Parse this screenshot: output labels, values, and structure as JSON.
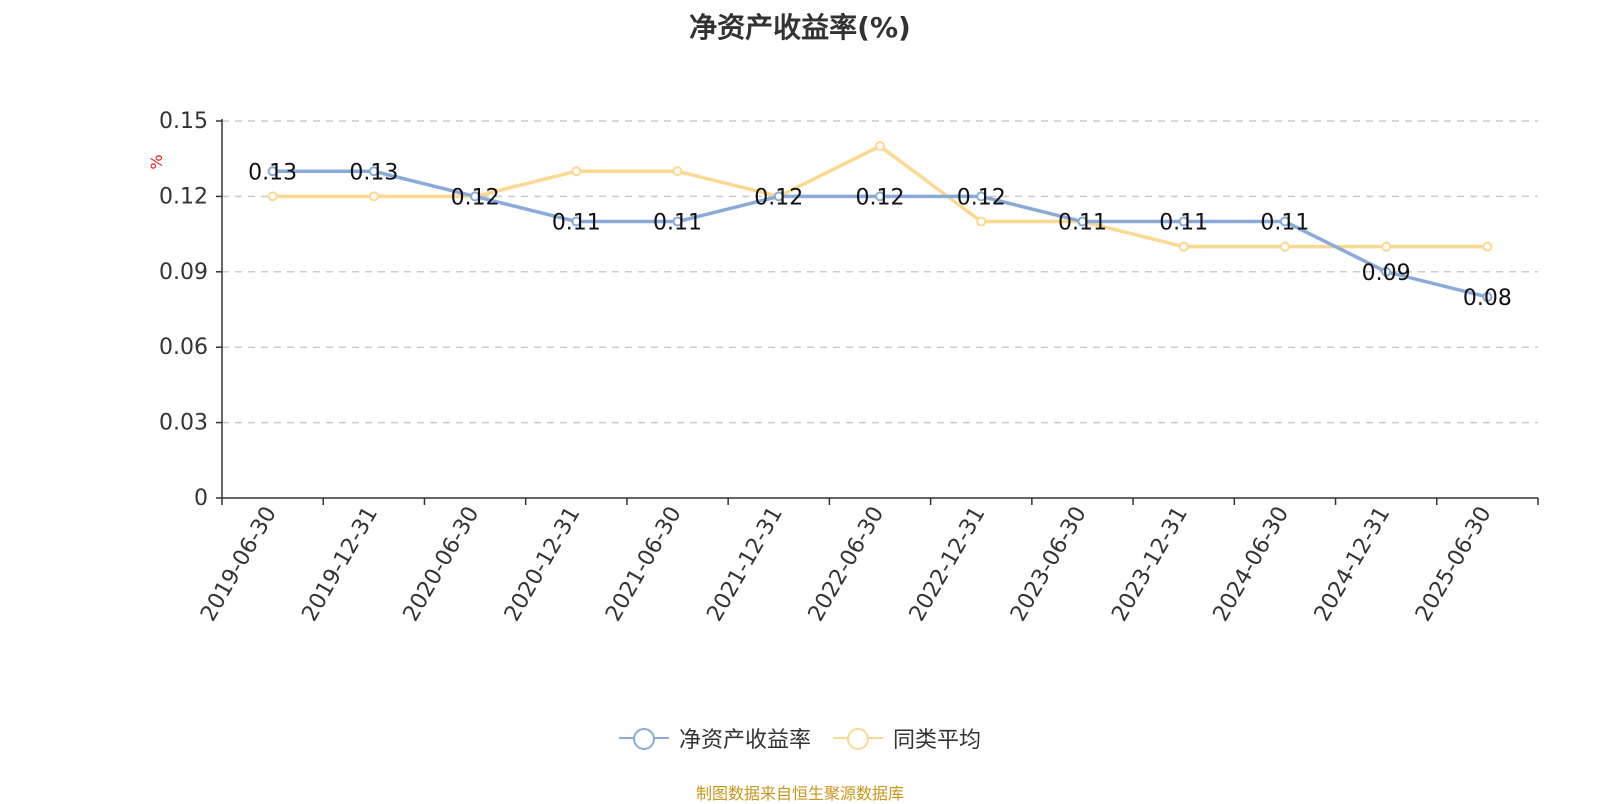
{
  "chart_data": {
    "type": "line",
    "title": "净资产收益率(%)",
    "ylabel": "%",
    "xlabel": "",
    "categories": [
      "2019-06-30",
      "2019-12-31",
      "2020-06-30",
      "2020-12-31",
      "2021-06-30",
      "2021-12-31",
      "2022-06-30",
      "2022-12-31",
      "2023-06-30",
      "2023-12-31",
      "2024-06-30",
      "2024-12-31",
      "2025-06-30"
    ],
    "ylim": [
      0,
      0.15
    ],
    "yticks": [
      "0",
      "0.03",
      "0.06",
      "0.09",
      "0.12",
      "0.15"
    ],
    "grid": true,
    "legend_position": "bottom-center",
    "series": [
      {
        "name": "净资产收益率",
        "color": "#8aaad8",
        "values": [
          0.13,
          0.13,
          0.12,
          0.11,
          0.11,
          0.12,
          0.12,
          0.12,
          0.11,
          0.11,
          0.11,
          0.09,
          0.08
        ],
        "data_labels": [
          "0.13",
          "0.13",
          "0.12",
          "0.11",
          "0.11",
          "0.12",
          "0.12",
          "0.12",
          "0.11",
          "0.11",
          "0.11",
          "0.09",
          "0.08"
        ]
      },
      {
        "name": "同类平均",
        "color": "#fcd990",
        "values": [
          0.12,
          0.12,
          0.12,
          0.13,
          0.13,
          0.12,
          0.14,
          0.11,
          0.11,
          0.1,
          0.1,
          0.1,
          0.1
        ]
      }
    ]
  },
  "legend": {
    "item1": "净资产收益率",
    "item2": "同类平均"
  },
  "source_note": "制图数据来自恒生聚源数据库"
}
